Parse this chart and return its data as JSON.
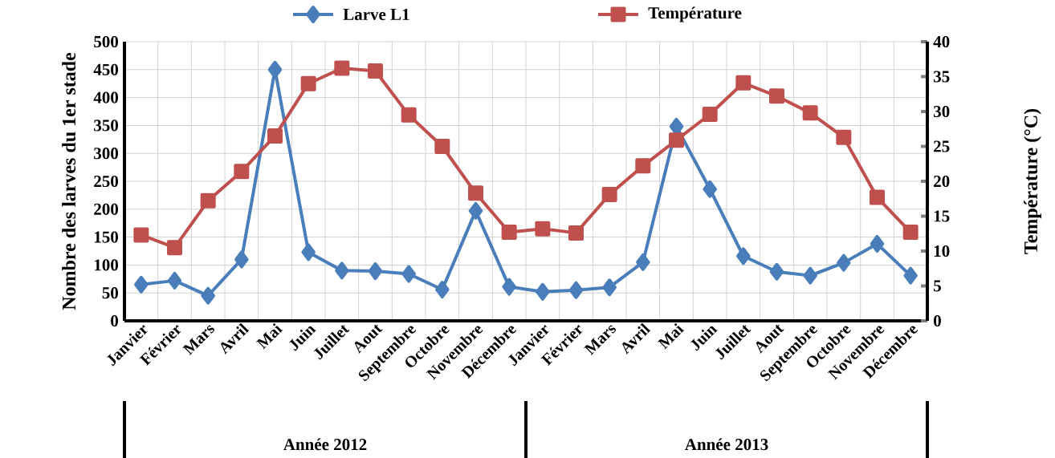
{
  "chart_data": {
    "type": "line",
    "ylabel": "Nombre des larves du 1er stade",
    "y2label": "Température (°C)",
    "categories": [
      "Janvier",
      "Février",
      "Mars",
      "Avril",
      "Mai",
      "Juin",
      "Juillet",
      "Aout",
      "Septembre",
      "Octobre",
      "Novembre",
      "Décembre",
      "Janvier",
      "Février",
      "Mars",
      "Avril",
      "Mai",
      "Juin",
      "Juillet",
      "Aout",
      "Septembre",
      "Octobre",
      "Novembre",
      "Décembre"
    ],
    "series": [
      {
        "name": "Larve L1",
        "color": "#4a7ebb",
        "marker": "diamond",
        "values": [
          65,
          72,
          45,
          110,
          450,
          123,
          90,
          89,
          84,
          56,
          197,
          61,
          52,
          55,
          60,
          105,
          348,
          236,
          116,
          88,
          81,
          104,
          138,
          81
        ]
      },
      {
        "name": "Température",
        "color": "#c0504d",
        "marker": "square",
        "axis": "y2",
        "values": [
          12.3,
          10.5,
          17.2,
          21.4,
          26.5,
          34,
          36.2,
          35.8,
          29.5,
          25,
          18.3,
          12.7,
          13.2,
          12.6,
          18.1,
          22.2,
          25.9,
          29.6,
          34.1,
          32.2,
          29.8,
          26.3,
          17.7,
          12.7
        ]
      }
    ],
    "ylim": [
      0,
      500
    ],
    "yticks": [
      0,
      50,
      100,
      150,
      200,
      250,
      300,
      350,
      400,
      450,
      500
    ],
    "y2lim": [
      0,
      40
    ],
    "y2ticks": [
      0,
      5,
      10,
      15,
      20,
      25,
      30,
      35,
      40
    ],
    "annotations": [
      "Année 2012",
      "Année 2013"
    ],
    "grid": true,
    "legend": "top",
    "line_style": "solid"
  }
}
